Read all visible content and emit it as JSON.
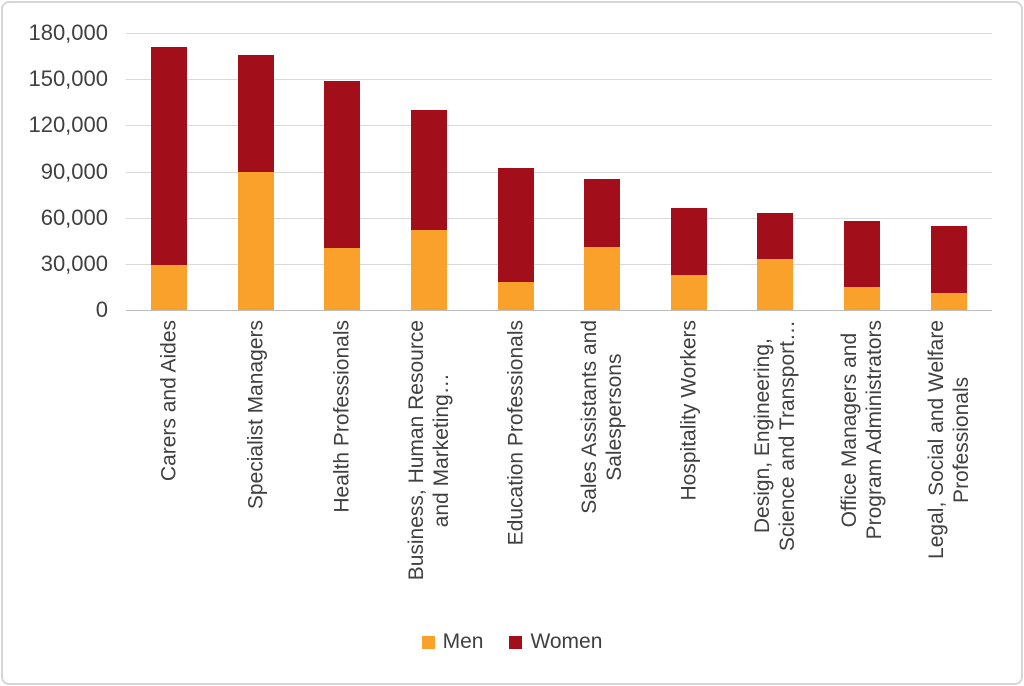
{
  "chart_data": {
    "type": "bar",
    "stacked": true,
    "title": "",
    "xlabel": "",
    "ylabel": "",
    "grid": true,
    "categories": [
      [
        "Carers and Aides"
      ],
      [
        "Specialist Managers"
      ],
      [
        "Health Professionals"
      ],
      [
        "Business, Human Resource",
        "and Marketing…"
      ],
      [
        "Education Professionals"
      ],
      [
        "Sales Assistants and",
        "Salespersons"
      ],
      [
        "Hospitality Workers"
      ],
      [
        "Design, Engineering,",
        "Science and Transport…"
      ],
      [
        "Office Managers and",
        "Program Administrators"
      ],
      [
        "Legal, Social and Welfare",
        "Professionals"
      ]
    ],
    "series": [
      {
        "name": "Men",
        "color": "#F9A12B",
        "values": [
          29000,
          90000,
          40000,
          52000,
          18000,
          41000,
          23000,
          33000,
          15000,
          11000
        ]
      },
      {
        "name": "Women",
        "color": "#A20E1A",
        "values": [
          142000,
          76000,
          109000,
          78000,
          74000,
          44000,
          43000,
          30000,
          43000,
          43500
        ]
      }
    ],
    "y_axis": {
      "min": 0,
      "max": 180000,
      "step": 30000,
      "tick_labels": [
        "180,000",
        "150,000",
        "120,000",
        "90,000",
        "60,000",
        "30,000",
        "0"
      ]
    },
    "legend": {
      "position": "bottom"
    }
  },
  "colors": {
    "gridline": "#d9d9d9",
    "axis_line": "#bdbdbd",
    "text": "#404040",
    "frame_border": "#d6d6d6",
    "background": "#ffffff"
  }
}
